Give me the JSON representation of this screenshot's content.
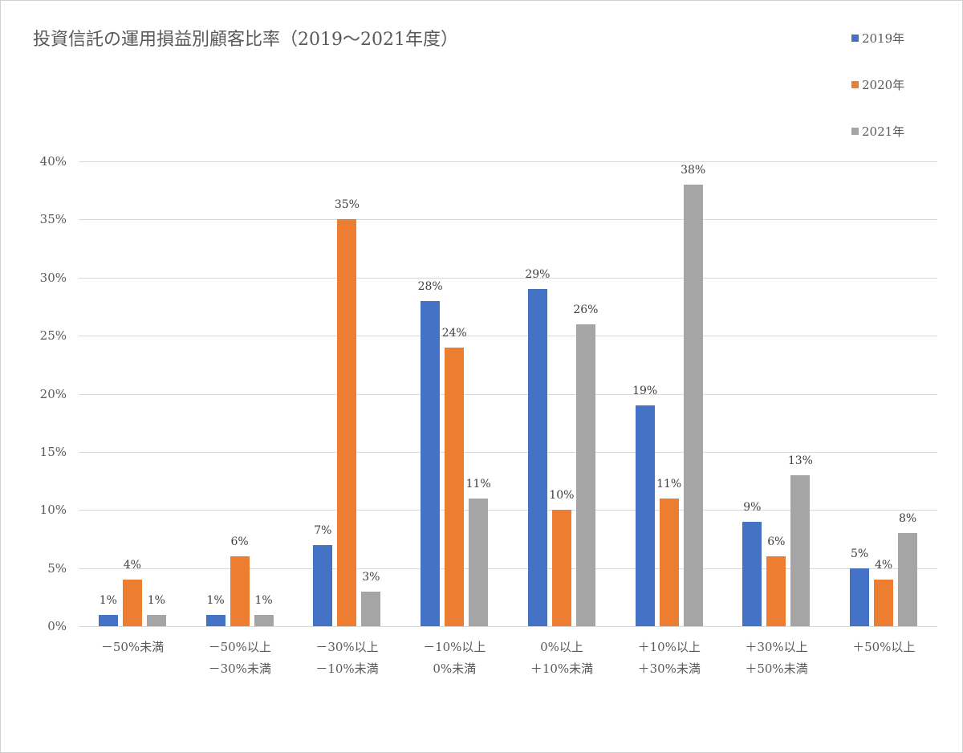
{
  "chart_data": {
    "type": "bar",
    "title": "投資信託の運用損益別顧客比率（2019～2021年度）",
    "xlabel": "",
    "ylabel": "",
    "ylim": [
      0,
      40
    ],
    "yticks": [
      "0%",
      "5%",
      "10%",
      "15%",
      "20%",
      "25%",
      "30%",
      "35%",
      "40%"
    ],
    "grid": true,
    "legend_position": "top-right",
    "categories": [
      [
        "－50%未満",
        ""
      ],
      [
        "－50%以上",
        "－30%未満"
      ],
      [
        "－30%以上",
        "－10%未満"
      ],
      [
        "－10%以上",
        "0%未満"
      ],
      [
        "0%以上",
        "＋10%未満"
      ],
      [
        "＋10%以上",
        "＋30%未満"
      ],
      [
        "＋30%以上",
        "＋50%未満"
      ],
      [
        "＋50%以上",
        ""
      ]
    ],
    "series": [
      {
        "name": "2019年",
        "color": "#4472C4",
        "values": [
          1,
          1,
          7,
          28,
          29,
          19,
          9,
          5
        ],
        "labels": [
          "1%",
          "1%",
          "7%",
          "28%",
          "29%",
          "19%",
          "9%",
          "5%"
        ]
      },
      {
        "name": "2020年",
        "color": "#ED7D31",
        "values": [
          4,
          6,
          35,
          24,
          10,
          11,
          6,
          4
        ],
        "labels": [
          "4%",
          "6%",
          "35%",
          "24%",
          "10%",
          "11%",
          "6%",
          "4%"
        ]
      },
      {
        "name": "2021年",
        "color": "#A5A5A5",
        "values": [
          1,
          1,
          3,
          11,
          26,
          38,
          13,
          8
        ],
        "labels": [
          "1%",
          "1%",
          "3%",
          "11%",
          "26%",
          "38%",
          "13%",
          "8%"
        ]
      }
    ]
  }
}
